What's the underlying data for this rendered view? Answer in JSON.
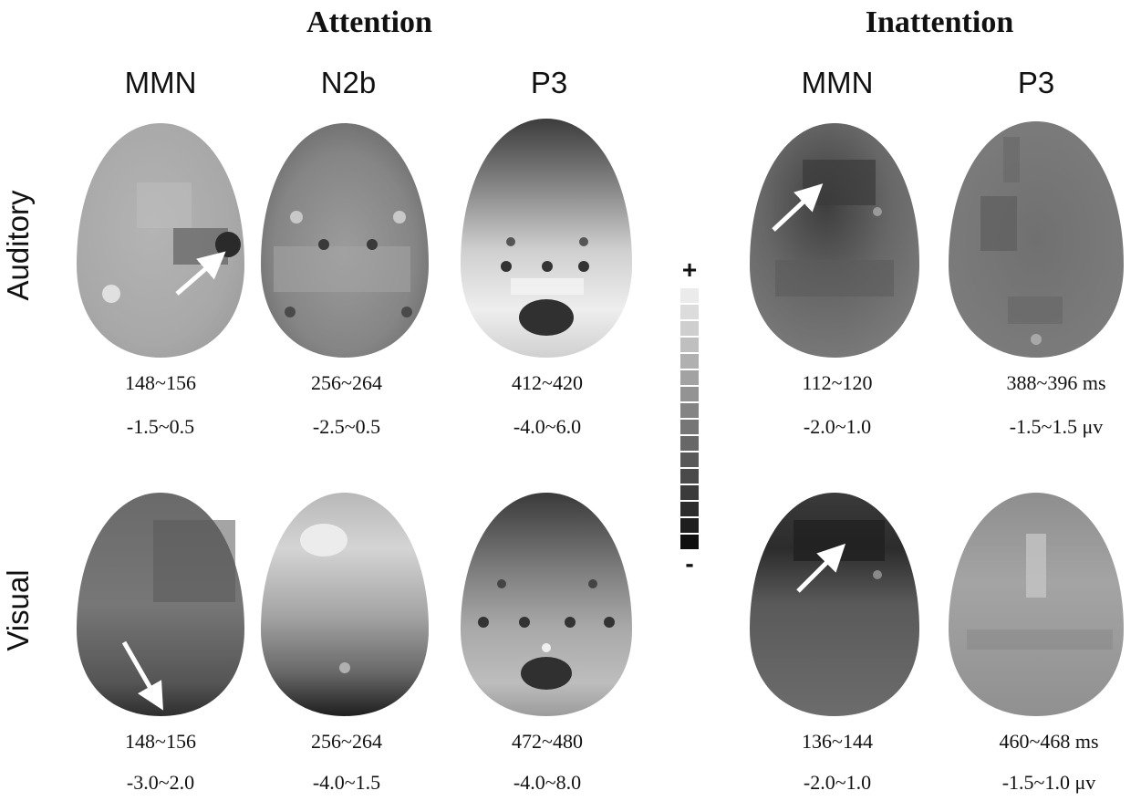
{
  "headers": {
    "attention": "Attention",
    "inattention": "Inattention"
  },
  "columns": [
    {
      "id": "att-mmn",
      "label": "MMN"
    },
    {
      "id": "att-n2b",
      "label": "N2b"
    },
    {
      "id": "att-p3",
      "label": "P3"
    },
    {
      "id": "inatt-mmn",
      "label": "MMN"
    },
    {
      "id": "inatt-p3",
      "label": "P3"
    }
  ],
  "rows": {
    "auditory": "Auditory",
    "visual": "Visual"
  },
  "scale": {
    "plus": "+",
    "minus": "-"
  },
  "auditory_values": {
    "latency": [
      "148~156",
      "256~264",
      "412~420",
      "112~120",
      "388~396 ms"
    ],
    "amplitude": [
      "-1.5~0.5",
      "-2.5~0.5",
      "-4.0~6.0",
      "-2.0~1.0",
      "-1.5~1.5  μv"
    ]
  },
  "visual_values": {
    "latency": [
      "148~156",
      "256~264",
      "472~480",
      "136~144",
      "460~468 ms"
    ],
    "amplitude": [
      "-3.0~2.0",
      "-4.0~1.5",
      "-4.0~8.0",
      "-2.0~1.0",
      "-1.5~1.0 μv"
    ]
  },
  "colors": {
    "map_mid_gray": "#7a7a7a",
    "map_dark": "#2a2a2a",
    "map_light": "#d8d8d8"
  }
}
